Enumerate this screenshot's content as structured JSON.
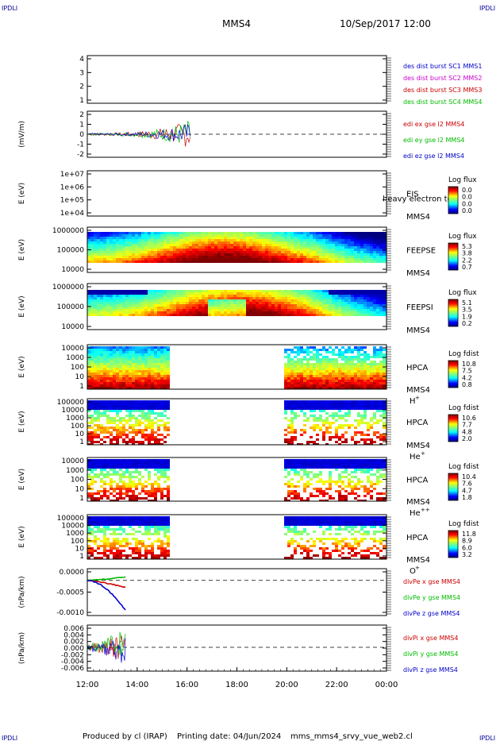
{
  "header": {
    "corner_label": "IPDLI",
    "spacecraft": "MMS4",
    "datetime": "10/Sep/2017 12:00"
  },
  "footer": {
    "produced_by": "Produced by cl (IRAP)",
    "printing_date": "Printing date: 04/Jun/2024",
    "filename": "mms_mms4_srvy_vue_web2.cl"
  },
  "chart_data": {
    "type": "multi-panel time series / spectrogram",
    "x_ticks": [
      "12:00",
      "14:00",
      "16:00",
      "18:00",
      "20:00",
      "22:00",
      "00:00"
    ],
    "x_range_hours": [
      12,
      24
    ],
    "panels": [
      {
        "id": "dist",
        "type": "line",
        "ylabel": "",
        "y_ticks": [
          "4",
          "3",
          "2",
          "1"
        ],
        "ylim": [
          0.6,
          4.4
        ],
        "legend": [
          {
            "label": "des dist burst SC1 MMS1",
            "color": "#0000cc"
          },
          {
            "label": "des dist burst SC2 MMS2",
            "color": "#cc00cc"
          },
          {
            "label": "des dist burst SC3 MMS3",
            "color": "#cc0000"
          },
          {
            "label": "des dist burst SC4 MMS4",
            "color": "#00bb00"
          }
        ]
      },
      {
        "id": "edi",
        "type": "line",
        "ylabel": "(mV/m)",
        "y_ticks": [
          "2",
          "1",
          "0",
          "-1",
          "-2"
        ],
        "ylim": [
          -2.2,
          2.2
        ],
        "data_end_hour": 16.15,
        "legend": [
          {
            "label": "edi ex gse l2 MMS4",
            "color": "#cc0000"
          },
          {
            "label": "edi ey gse l2 MMS4",
            "color": "#00bb00"
          },
          {
            "label": "edi ez gse l2 MMS4",
            "color": "#0000cc"
          }
        ]
      },
      {
        "id": "eis",
        "type": "heatmap",
        "ylabel": "E (eV)",
        "y_ticks": [
          "1e+07",
          "1e+06",
          "1e+05",
          "1e+04"
        ],
        "labels": [
          "EIS",
          "MMS4"
        ],
        "overlay_text": "heavy electron to",
        "cbar_title": "Log flux",
        "cbar_ticks": [
          "0.0",
          "0.0",
          "0.0",
          "0.0"
        ]
      },
      {
        "id": "feeps_e",
        "type": "heatmap",
        "ylabel": "E (eV)",
        "y_ticks": [
          "1000000",
          "100000",
          "10000"
        ],
        "labels": [
          "FEEPSE",
          "MMS4"
        ],
        "cbar_title": "Log flux",
        "cbar_ticks": [
          "5.3",
          "3.8",
          "2.2",
          "0.7"
        ]
      },
      {
        "id": "feeps_i",
        "type": "heatmap",
        "ylabel": "E (eV)",
        "y_ticks": [
          "1000000",
          "100000",
          "10000"
        ],
        "labels": [
          "FEEPSI",
          "MMS4"
        ],
        "cbar_title": "Log flux",
        "cbar_ticks": [
          "5.1",
          "3.5",
          "1.9",
          "0.2"
        ]
      },
      {
        "id": "hpca_h",
        "type": "heatmap",
        "ylabel": "E (eV)",
        "y_ticks": [
          "10000",
          "1000",
          "100",
          "10",
          "1"
        ],
        "labels": [
          "HPCA",
          "MMS4"
        ],
        "species": "H",
        "species_sup": "+",
        "gap_hours": [
          15.35,
          19.85
        ],
        "cbar_title": "Log fdist",
        "cbar_ticks": [
          "10.8",
          "7.5",
          "4.2",
          "0.8"
        ]
      },
      {
        "id": "hpca_he",
        "type": "heatmap",
        "ylabel": "E (eV)",
        "y_ticks": [
          "100000",
          "10000",
          "1000",
          "100",
          "10",
          "1"
        ],
        "labels": [
          "HPCA",
          "MMS4"
        ],
        "species": "He",
        "species_sup": "+",
        "gap_hours": [
          15.35,
          19.85
        ],
        "cbar_title": "Log fdist",
        "cbar_ticks": [
          "10.6",
          "7.7",
          "4.8",
          "2.0"
        ]
      },
      {
        "id": "hpca_hepp",
        "type": "heatmap",
        "ylabel": "E (eV)",
        "y_ticks": [
          "10000",
          "1000",
          "100",
          "10",
          "1"
        ],
        "labels": [
          "HPCA",
          "MMS4"
        ],
        "species": "He",
        "species_sup": "++",
        "gap_hours": [
          15.35,
          19.85
        ],
        "cbar_title": "Log fdist",
        "cbar_ticks": [
          "10.4",
          "7.6",
          "4.7",
          "1.8"
        ]
      },
      {
        "id": "hpca_o",
        "type": "heatmap",
        "ylabel": "E (eV)",
        "y_ticks": [
          "100000",
          "10000",
          "1000",
          "100",
          "10",
          "1"
        ],
        "labels": [
          "HPCA",
          "MMS4"
        ],
        "species": "O",
        "species_sup": "+",
        "gap_hours": [
          15.35,
          19.85
        ],
        "cbar_title": "Log fdist",
        "cbar_ticks": [
          "11.8",
          "8.9",
          "6.0",
          "3.2"
        ]
      },
      {
        "id": "divpe",
        "type": "line",
        "ylabel": "(nPa/km)",
        "y_ticks": [
          "0.0000",
          "-0.0005",
          "-0.0010"
        ],
        "ylim": [
          -0.0012,
          0.0004
        ],
        "data_end_hour": 13.55,
        "legend": [
          {
            "label": "divPe x gse MMS4",
            "color": "#cc0000"
          },
          {
            "label": "divPe y gse MMS4",
            "color": "#00bb00"
          },
          {
            "label": "divPe z gse MMS4",
            "color": "#0000cc"
          }
        ]
      },
      {
        "id": "divpi",
        "type": "line",
        "ylabel": "(nPa/km)",
        "y_ticks": [
          "0.006",
          "0.004",
          "0.002",
          "0.000",
          "-0.002",
          "-0.004",
          "-0.006"
        ],
        "ylim": [
          -0.0075,
          0.007
        ],
        "data_end_hour": 13.55,
        "legend": [
          {
            "label": "divPi x gse MMS4",
            "color": "#cc0000"
          },
          {
            "label": "divPi y gse MMS4",
            "color": "#00bb00"
          },
          {
            "label": "divPi z gse MMS4",
            "color": "#0000cc"
          }
        ]
      }
    ]
  }
}
